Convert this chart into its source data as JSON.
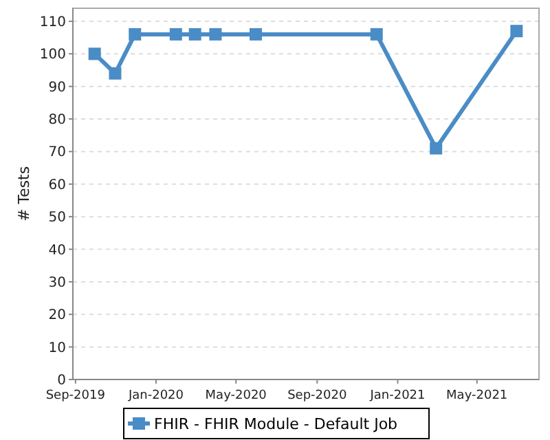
{
  "chart_data": {
    "type": "line",
    "ylabel": "# Tests",
    "x": [
      "2019-09-30",
      "2019-10-31",
      "2019-11-30",
      "2020-01-31",
      "2020-02-29",
      "2020-03-31",
      "2020-05-31",
      "2020-11-30",
      "2021-02-28",
      "2021-06-30"
    ],
    "series": [
      {
        "name": "FHIR - FHIR Module - Default Job",
        "color": "#4a8cc6",
        "values": [
          100,
          94,
          106,
          106,
          106,
          106,
          106,
          106,
          71,
          107
        ]
      }
    ],
    "xlim": [
      "2019-08-28",
      "2021-08-03"
    ],
    "xticks": [
      {
        "value": "2019-09-01",
        "label": "Sep-2019"
      },
      {
        "value": "2020-01-01",
        "label": "Jan-2020"
      },
      {
        "value": "2020-05-01",
        "label": "May-2020"
      },
      {
        "value": "2020-09-01",
        "label": "Sep-2020"
      },
      {
        "value": "2021-01-01",
        "label": "Jan-2021"
      },
      {
        "value": "2021-05-01",
        "label": "May-2021"
      }
    ],
    "ylim": [
      0,
      114
    ],
    "yticks": [
      0,
      10,
      20,
      30,
      40,
      50,
      60,
      70,
      80,
      90,
      100,
      110
    ],
    "grid": "y",
    "legend": "bottom",
    "marker": "square",
    "line_style": "solid"
  }
}
